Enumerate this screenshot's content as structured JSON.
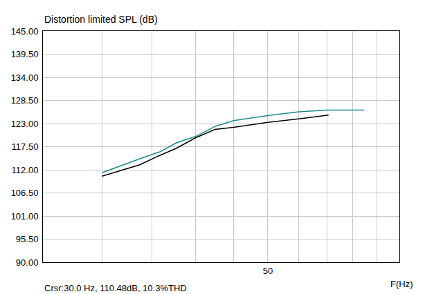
{
  "chart_data": {
    "type": "line",
    "y_label": "Distortion limited SPL (dB)",
    "x_label": "F(Hz)",
    "log": "x",
    "grid": true,
    "xlim": [
      25,
      75
    ],
    "xticks": [
      {
        "value": 30,
        "label": null
      },
      {
        "value": 35,
        "label": null
      },
      {
        "value": 40,
        "label": null
      },
      {
        "value": 45,
        "label": null
      },
      50,
      {
        "value": 55,
        "label": null
      },
      {
        "value": 60,
        "label": null
      },
      {
        "value": 65,
        "label": null
      },
      {
        "value": 70,
        "label": null
      }
    ],
    "ylim": [
      90,
      145
    ],
    "yticks": [
      {
        "value": 90,
        "label": "90.00"
      },
      {
        "value": 95.5,
        "label": "95.50"
      },
      {
        "value": 101,
        "label": "101.00"
      },
      {
        "value": 106.5,
        "label": "106.50"
      },
      {
        "value": 112,
        "label": "112.00"
      },
      {
        "value": 117.5,
        "label": "117.50"
      },
      {
        "value": 123,
        "label": "123.00"
      },
      {
        "value": 128.5,
        "label": "128.50"
      },
      {
        "value": 134,
        "label": "134.00"
      },
      {
        "value": 139.5,
        "label": "139.50"
      },
      {
        "value": 145,
        "label": "145.00"
      }
    ],
    "series": [
      {
        "color": "#1a8a8a",
        "x": [
          30,
          33.9,
          35.9,
          37.7,
          40,
          42.6,
          45,
          50,
          55,
          60,
          65,
          67.3
        ],
        "values": [
          111.3,
          114.8,
          116.3,
          118.4,
          119.9,
          122.4,
          123.7,
          124.9,
          125.8,
          126.2,
          126.2,
          126.2
        ]
      },
      {
        "color": "#000000",
        "x": [
          30,
          33.7,
          35.7,
          37.7,
          40,
          42.5,
          45,
          50,
          55,
          60.3
        ],
        "values": [
          110.48,
          113.2,
          115.3,
          117.1,
          119.6,
          121.6,
          122.1,
          123.3,
          124.1,
          125.0
        ]
      }
    ],
    "annotations": [
      {
        "text": "Crsr:30.0 Hz, 110.48dB, 10.3%THD",
        "x": 30
      }
    ]
  }
}
